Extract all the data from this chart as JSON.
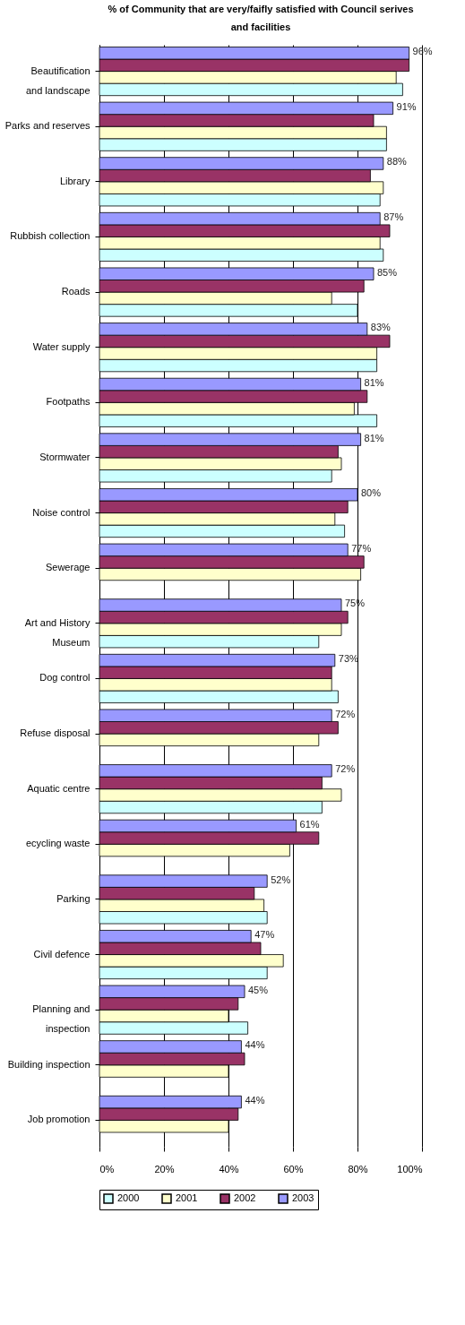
{
  "chart_data": {
    "type": "bar",
    "orientation": "horizontal",
    "title": "% of Community that are very/faifly satisfied with Council serives and facilities",
    "categories": [
      "Beautification and landscape",
      "Parks and reserves",
      "Library",
      "Rubbish collection",
      "Roads",
      "Water supply",
      "Footpaths",
      "Stormwater",
      "Noise control",
      "Sewerage",
      "Art and History Museum",
      "Dog control",
      "Refuse disposal",
      "Aquatic centre",
      "ecycling waste",
      "Parking",
      "Civil defence",
      "Planning and inspection",
      "Building inspection",
      "Job promotion"
    ],
    "series": [
      {
        "name": "2000",
        "color": "#ccffff",
        "values": [
          94,
          89,
          87,
          88,
          80,
          86,
          86,
          72,
          76,
          null,
          68,
          74,
          null,
          69,
          null,
          52,
          52,
          46,
          null,
          null
        ]
      },
      {
        "name": "2001",
        "color": "#ffffcc",
        "values": [
          92,
          89,
          88,
          87,
          72,
          86,
          79,
          75,
          73,
          81,
          75,
          72,
          68,
          75,
          59,
          51,
          57,
          40,
          40,
          40
        ]
      },
      {
        "name": "2002",
        "color": "#993366",
        "values": [
          96,
          85,
          84,
          90,
          82,
          90,
          83,
          74,
          77,
          82,
          77,
          72,
          74,
          69,
          68,
          48,
          50,
          43,
          45,
          43
        ]
      },
      {
        "name": "2003",
        "color": "#9999ff",
        "values": [
          96,
          91,
          88,
          87,
          85,
          83,
          81,
          81,
          80,
          77,
          75,
          73,
          72,
          72,
          61,
          52,
          47,
          45,
          44,
          44
        ],
        "value_labels": [
          "96%",
          "91%",
          "88%",
          "87%",
          "85%",
          "83%",
          "81%",
          "81%",
          "80%",
          "77%",
          "75%",
          "73%",
          "72%",
          "72%",
          "61%",
          "52%",
          "47%",
          "45%",
          "44%",
          "44%"
        ]
      }
    ],
    "xlim": [
      0,
      100
    ],
    "xticks": [
      {
        "value": 0,
        "label": "0%"
      },
      {
        "value": 20,
        "label": "20%"
      },
      {
        "value": 40,
        "label": "40%"
      },
      {
        "value": 60,
        "label": "60%"
      },
      {
        "value": 80,
        "label": "80%"
      },
      {
        "value": 100,
        "label": "100%"
      }
    ],
    "grid": "x",
    "legend": "bottom"
  }
}
